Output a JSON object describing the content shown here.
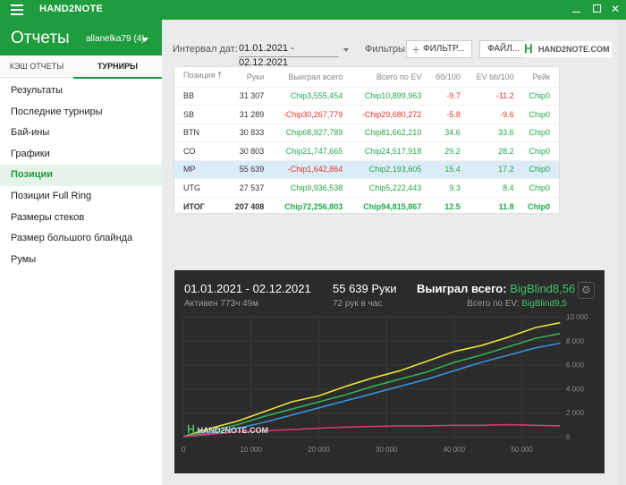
{
  "app": {
    "title": "HAND2NOTE",
    "close_glyph": "✕"
  },
  "sidebar": {
    "title": "Отчеты",
    "account": "allanelka79 (4)",
    "tabs": [
      "КЭШ ОТЧЕТЫ",
      "ТУРНИРЫ"
    ],
    "items": [
      {
        "label": "Результаты"
      },
      {
        "label": "Последние турниры"
      },
      {
        "label": "Бай-ины"
      },
      {
        "label": "Графики"
      },
      {
        "label": "Позиции"
      },
      {
        "label": "Позиции Full Ring"
      },
      {
        "label": "Размеры стеков"
      },
      {
        "label": "Размер большого блайнда"
      },
      {
        "label": "Румы"
      }
    ],
    "active_index": 4
  },
  "toolbar": {
    "interval_label": "Интервал дат:",
    "interval_value": "01.01.2021 - 02.12.2021",
    "filters_label": "Фильтры:",
    "filter_button": "ФИЛЬТР...",
    "file_button": "ФАЙЛ...",
    "logo_text": "HAND2NOTE.COM"
  },
  "table": {
    "columns": [
      "Позиция",
      "Руки",
      "Выиграл всего",
      "Всего по EV",
      "бб/100",
      "EV bb/100",
      "Рейк"
    ],
    "sort_arrow": "🡑",
    "rows": [
      {
        "pos": "BB",
        "hands": "31 307",
        "won": "Chip3,555,454",
        "ev": "Chip10,899,963",
        "bb100": "-9.7",
        "evbb100": "-11.2",
        "rake": "Chip0"
      },
      {
        "pos": "SB",
        "hands": "31 289",
        "won": "-Chip30,267,779",
        "ev": "-Chip29,680,272",
        "bb100": "-5.8",
        "evbb100": "-9.6",
        "rake": "Chip0"
      },
      {
        "pos": "BTN",
        "hands": "30 833",
        "won": "Chip68,927,789",
        "ev": "Chip81,662,210",
        "bb100": "34.6",
        "evbb100": "33.6",
        "rake": "Chip0"
      },
      {
        "pos": "CO",
        "hands": "30 803",
        "won": "Chip21,747,665",
        "ev": "Chip24,517,918",
        "bb100": "29.2",
        "evbb100": "28.2",
        "rake": "Chip0"
      },
      {
        "pos": "MP",
        "hands": "55 639",
        "won": "-Chip1,642,864",
        "ev": "Chip2,193,605",
        "bb100": "15.4",
        "evbb100": "17.2",
        "rake": "Chip0"
      },
      {
        "pos": "UTG",
        "hands": "27 537",
        "won": "Chip9,936,538",
        "ev": "Chip5,222,443",
        "bb100": "9.3",
        "evbb100": "8.4",
        "rake": "Chip0"
      },
      {
        "pos": "ИТОГ",
        "hands": "207 408",
        "won": "Chip72,256,803",
        "ev": "Chip94,815,867",
        "bb100": "12.5",
        "evbb100": "11.8",
        "rake": "Chip0"
      }
    ],
    "highlight_index": 4,
    "total_index": 6
  },
  "graph": {
    "range": "01.01.2021 - 02.12.2021",
    "active": "Активен 773ч 49м",
    "hands": "55 639 Руки",
    "rate": "72 рук в час",
    "won_label": "Выиграл всего:",
    "won_value": "BigBlind8,56",
    "ev_label": "Всего по EV:",
    "ev_value": "BigBlind9,5",
    "gear_glyph": "⚙",
    "logo_mark": "ᕼ",
    "logo_text": "HAND2NOTE.COM"
  },
  "chart_data": {
    "type": "line",
    "x_ticks": [
      "0",
      "10 000",
      "20 000",
      "30 000",
      "40 000",
      "50 000"
    ],
    "y_ticks": [
      "10 000",
      "8 000",
      "6 000",
      "4 000",
      "2 000",
      "0"
    ],
    "xlim": [
      0,
      56000
    ],
    "ylim": [
      0,
      10000
    ],
    "series": [
      {
        "color": "#e8e23a",
        "x": [
          0,
          4000,
          8000,
          12000,
          16000,
          20000,
          24000,
          28000,
          32000,
          36000,
          40000,
          44000,
          48000,
          52000,
          55639
        ],
        "y": [
          0,
          700,
          1300,
          2100,
          2900,
          3400,
          4200,
          4900,
          5500,
          6300,
          7100,
          7600,
          8300,
          9100,
          9500
        ]
      },
      {
        "color": "#2fb154",
        "x": [
          0,
          4000,
          8000,
          12000,
          16000,
          20000,
          24000,
          28000,
          32000,
          36000,
          40000,
          44000,
          48000,
          52000,
          55639
        ],
        "y": [
          0,
          500,
          1000,
          1700,
          2300,
          2900,
          3500,
          4200,
          4800,
          5400,
          6200,
          6800,
          7500,
          8200,
          8600
        ]
      },
      {
        "color": "#3a8fd8",
        "x": [
          0,
          4000,
          8000,
          12000,
          16000,
          20000,
          24000,
          28000,
          32000,
          36000,
          40000,
          44000,
          48000,
          52000,
          55639
        ],
        "y": [
          0,
          300,
          700,
          1200,
          1800,
          2400,
          3000,
          3600,
          4200,
          4800,
          5500,
          6200,
          6800,
          7400,
          7800
        ]
      },
      {
        "color": "#d63a6a",
        "x": [
          0,
          4000,
          8000,
          12000,
          16000,
          20000,
          24000,
          28000,
          32000,
          36000,
          40000,
          44000,
          48000,
          52000,
          55639
        ],
        "y": [
          0,
          200,
          400,
          500,
          600,
          700,
          800,
          850,
          900,
          900,
          950,
          950,
          1000,
          950,
          900
        ]
      }
    ]
  }
}
